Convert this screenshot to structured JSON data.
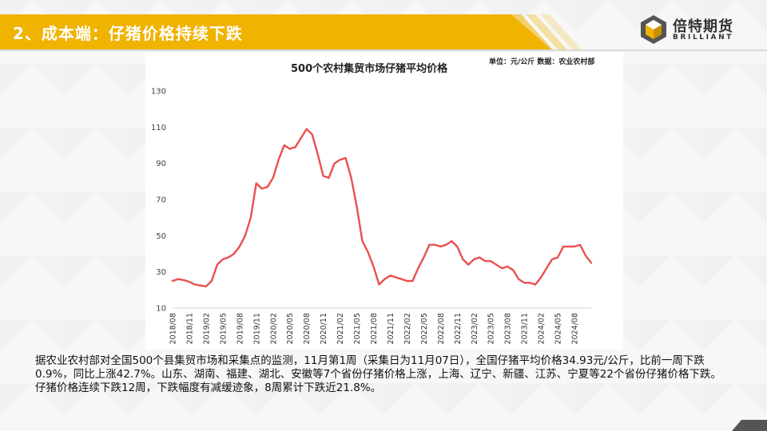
{
  "header": {
    "title": "2、成本端：仔猪价格持续下跌",
    "accent_color": "#f0b300"
  },
  "logo": {
    "cn_name": "倍特期货",
    "en_name": "BRILLIANT",
    "icon": "cube-logo-icon"
  },
  "chart_data": {
    "type": "line",
    "title": "500个农村集贸市场仔猪平均价格",
    "unit_note": "单位：元/公斤  数据：农业农村部",
    "xlabel": "",
    "ylabel": "",
    "ylim": [
      10,
      130
    ],
    "yticks": [
      10,
      30,
      50,
      70,
      90,
      110,
      130
    ],
    "xlim": [
      "2018-08",
      "2024-11"
    ],
    "x_tick_labels": [
      "2018/08",
      "2018/11",
      "2019/02",
      "2019/05",
      "2019/08",
      "2019/11",
      "2020/02",
      "2020/05",
      "2020/08",
      "2020/11",
      "2021/02",
      "2021/05",
      "2021/08",
      "2021/11",
      "2022/02",
      "2022/05",
      "2022/08",
      "2022/11",
      "2023/02",
      "2023/05",
      "2023/08",
      "2023/11",
      "2024/02",
      "2024/05",
      "2024/08"
    ],
    "grid": false,
    "legend": "none",
    "series": [
      {
        "color": "#e8504f",
        "points": [
          [
            "2018-08",
            25
          ],
          [
            "2018-09",
            26
          ],
          [
            "2018-10",
            25.5
          ],
          [
            "2018-11",
            24.5
          ],
          [
            "2018-12",
            23
          ],
          [
            "2019-01",
            22.5
          ],
          [
            "2019-02",
            22
          ],
          [
            "2019-03",
            25
          ],
          [
            "2019-04",
            34
          ],
          [
            "2019-05",
            37
          ],
          [
            "2019-06",
            38
          ],
          [
            "2019-07",
            40
          ],
          [
            "2019-08",
            44
          ],
          [
            "2019-09",
            50
          ],
          [
            "2019-10",
            60
          ],
          [
            "2019-11",
            79
          ],
          [
            "2019-12",
            76
          ],
          [
            "2020-01",
            77
          ],
          [
            "2020-02",
            82
          ],
          [
            "2020-03",
            92
          ],
          [
            "2020-04",
            100
          ],
          [
            "2020-05",
            98
          ],
          [
            "2020-06",
            99
          ],
          [
            "2020-07",
            104
          ],
          [
            "2020-08",
            109
          ],
          [
            "2020-09",
            106
          ],
          [
            "2020-10",
            95
          ],
          [
            "2020-11",
            83
          ],
          [
            "2020-12",
            82
          ],
          [
            "2021-01",
            90
          ],
          [
            "2021-02",
            92
          ],
          [
            "2021-03",
            93
          ],
          [
            "2021-04",
            82
          ],
          [
            "2021-05",
            66
          ],
          [
            "2021-06",
            47
          ],
          [
            "2021-07",
            41
          ],
          [
            "2021-08",
            33
          ],
          [
            "2021-09",
            23
          ],
          [
            "2021-10",
            26
          ],
          [
            "2021-11",
            28
          ],
          [
            "2021-12",
            27
          ],
          [
            "2022-01",
            26
          ],
          [
            "2022-02",
            25
          ],
          [
            "2022-03",
            25
          ],
          [
            "2022-04",
            32
          ],
          [
            "2022-05",
            38
          ],
          [
            "2022-06",
            45
          ],
          [
            "2022-07",
            45
          ],
          [
            "2022-08",
            44
          ],
          [
            "2022-09",
            45
          ],
          [
            "2022-10",
            47
          ],
          [
            "2022-11",
            44
          ],
          [
            "2022-12",
            37
          ],
          [
            "2023-01",
            34
          ],
          [
            "2023-02",
            37
          ],
          [
            "2023-03",
            38
          ],
          [
            "2023-04",
            36
          ],
          [
            "2023-05",
            36
          ],
          [
            "2023-06",
            34
          ],
          [
            "2023-07",
            32
          ],
          [
            "2023-08",
            33
          ],
          [
            "2023-09",
            31
          ],
          [
            "2023-10",
            26
          ],
          [
            "2023-11",
            24
          ],
          [
            "2023-12",
            24
          ],
          [
            "2024-01",
            23
          ],
          [
            "2024-02",
            27
          ],
          [
            "2024-03",
            32
          ],
          [
            "2024-04",
            37
          ],
          [
            "2024-05",
            38
          ],
          [
            "2024-06",
            44
          ],
          [
            "2024-07",
            44
          ],
          [
            "2024-08",
            44
          ],
          [
            "2024-09",
            45
          ],
          [
            "2024-10",
            39
          ],
          [
            "2024-11",
            35
          ]
        ]
      }
    ]
  },
  "body": {
    "paragraph1": "据农业农村部对全国500个县集贸市场和采集点的监测，11月第1周（采集日为11月07日），全国仔猪平均价格34.93元/公斤，比前一周下跌0.9%，同比上涨42.7%。山东、湖南、福建、湖北、安徽等7个省份仔猪价格上涨，上海、辽宁、新疆、江苏、宁夏等22个省份仔猪价格下跌。",
    "paragraph2": "仔猪价格连续下跌12周，下跌幅度有减缓迹象，8周累计下跌近21.8%。"
  }
}
